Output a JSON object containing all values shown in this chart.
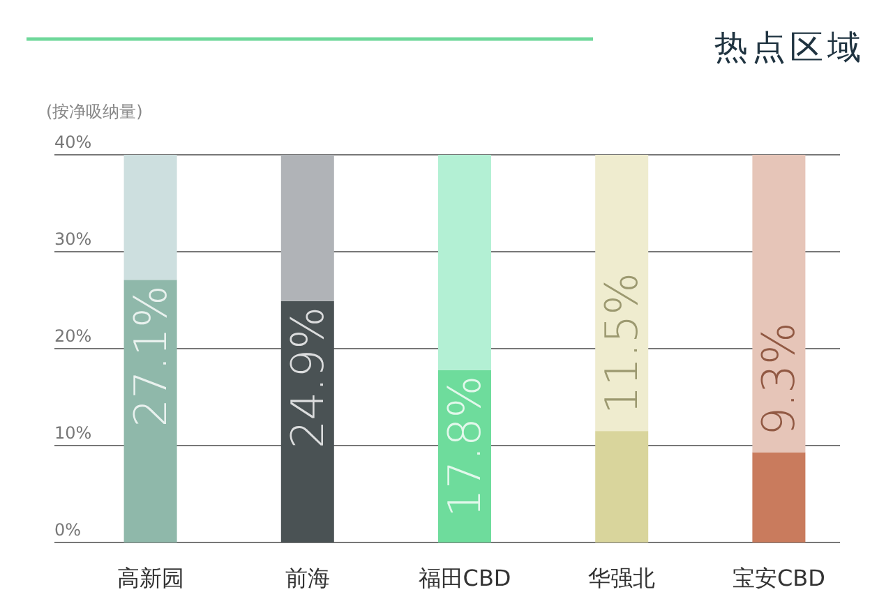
{
  "chart_data": {
    "type": "bar",
    "title": "热点区域",
    "ylabel": "(按净吸纳量)",
    "stacked": true,
    "grid": "y",
    "categories": [
      "高新园",
      "前海",
      "福田CBD",
      "华强北",
      "宝安CBD"
    ],
    "series": [
      {
        "colors": [
          "#8fb8aa",
          "#4a5254",
          "#6edc9c",
          "#d9d59c",
          "#c97b5d"
        ],
        "values": [
          27.1,
          24.9,
          17.8,
          11.5,
          9.3
        ],
        "value_labels": [
          "27.1%",
          "24.9%",
          "17.8%",
          "11.5%",
          "9.3%"
        ]
      },
      {
        "colors": [
          "#cddfdf",
          "#b0b3b7",
          "#b3f0d4",
          "#efeccf",
          "#e6c5b8"
        ],
        "values": [
          12.9,
          15.1,
          22.2,
          28.5,
          30.7
        ]
      }
    ],
    "ylim": [
      0,
      40
    ],
    "yticks": [
      {
        "value": 0,
        "label": "0%"
      },
      {
        "value": 10,
        "label": "10%"
      },
      {
        "value": 20,
        "label": "20%"
      },
      {
        "value": 30,
        "label": "30%"
      },
      {
        "value": 40,
        "label": "40%"
      }
    ]
  }
}
